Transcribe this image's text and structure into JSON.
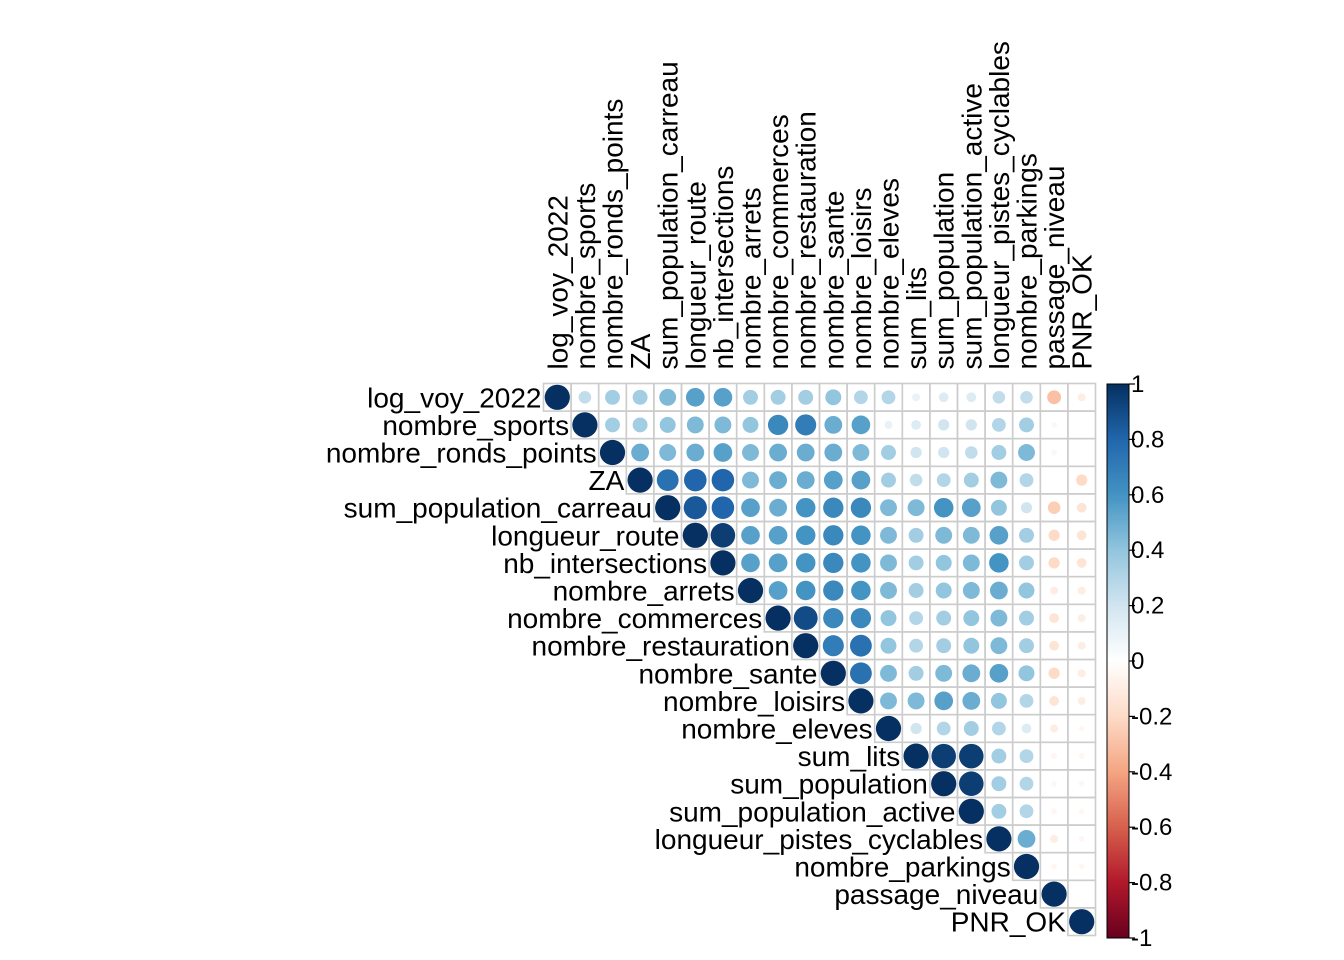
{
  "chart_data": {
    "type": "correlation-matrix-upper-circle",
    "variables": [
      "log_voy_2022",
      "nombre_sports",
      "nombre_ronds_points",
      "ZA",
      "sum_population_carreau",
      "longueur_route",
      "nb_intersections",
      "nombre_arrets",
      "nombre_commerces",
      "nombre_restauration",
      "nombre_sante",
      "nombre_loisirs",
      "nombre_eleves",
      "sum_lits",
      "sum_population",
      "sum_population_active",
      "longueur_pistes_cyclables",
      "nombre_parkings",
      "passage_niveau",
      "PNR_OK"
    ],
    "rows": [
      [
        1.0,
        0.25,
        0.35,
        0.35,
        0.45,
        0.55,
        0.55,
        0.35,
        0.35,
        0.35,
        0.4,
        0.3,
        0.3,
        0.1,
        0.15,
        0.15,
        0.25,
        0.25,
        -0.3,
        -0.1
      ],
      [
        1.0,
        0.35,
        0.35,
        0.4,
        0.45,
        0.45,
        0.4,
        0.65,
        0.7,
        0.5,
        0.55,
        0.1,
        0.15,
        0.2,
        0.2,
        0.3,
        0.35,
        0.05,
        0.0
      ],
      [
        1.0,
        0.5,
        0.45,
        0.5,
        0.55,
        0.45,
        0.5,
        0.5,
        0.5,
        0.45,
        0.35,
        0.2,
        0.2,
        0.25,
        0.35,
        0.45,
        0.05,
        0.0
      ],
      [
        1.0,
        0.75,
        0.8,
        0.8,
        0.45,
        0.5,
        0.5,
        0.55,
        0.55,
        0.35,
        0.25,
        0.3,
        0.35,
        0.45,
        0.3,
        0.0,
        -0.2
      ],
      [
        1.0,
        0.85,
        0.8,
        0.55,
        0.5,
        0.6,
        0.65,
        0.65,
        0.45,
        0.45,
        0.6,
        0.55,
        0.4,
        0.2,
        -0.25,
        -0.15
      ],
      [
        1.0,
        0.95,
        0.55,
        0.55,
        0.6,
        0.65,
        0.6,
        0.45,
        0.35,
        0.45,
        0.45,
        0.55,
        0.35,
        -0.2,
        -0.15
      ],
      [
        1.0,
        0.55,
        0.55,
        0.6,
        0.65,
        0.6,
        0.45,
        0.35,
        0.4,
        0.45,
        0.6,
        0.35,
        -0.2,
        -0.15
      ],
      [
        1.0,
        0.55,
        0.6,
        0.65,
        0.6,
        0.45,
        0.35,
        0.4,
        0.45,
        0.5,
        0.4,
        -0.1,
        -0.1
      ],
      [
        1.0,
        0.9,
        0.65,
        0.65,
        0.4,
        0.3,
        0.35,
        0.4,
        0.45,
        0.35,
        -0.15,
        -0.1
      ],
      [
        1.0,
        0.7,
        0.75,
        0.4,
        0.3,
        0.35,
        0.4,
        0.45,
        0.35,
        -0.15,
        -0.1
      ],
      [
        1.0,
        0.75,
        0.45,
        0.35,
        0.45,
        0.5,
        0.55,
        0.4,
        -0.2,
        -0.1
      ],
      [
        1.0,
        0.45,
        0.45,
        0.55,
        0.5,
        0.4,
        0.3,
        -0.15,
        -0.1
      ],
      [
        1.0,
        0.2,
        0.3,
        0.35,
        0.3,
        0.15,
        -0.1,
        -0.05
      ],
      [
        1.0,
        0.95,
        0.95,
        0.35,
        0.3,
        -0.05,
        -0.05
      ],
      [
        1.0,
        0.95,
        0.35,
        0.3,
        -0.05,
        -0.05
      ],
      [
        1.0,
        0.35,
        0.3,
        -0.05,
        -0.05
      ],
      [
        1.0,
        0.5,
        -0.1,
        -0.05
      ],
      [
        1.0,
        -0.05,
        -0.05
      ],
      [
        1.0,
        0.0
      ],
      [
        1.0
      ]
    ],
    "colorbar": {
      "range": [
        -1,
        1
      ],
      "tick_labels": [
        "1",
        "0.8",
        "0.6",
        "0.4",
        "0.2",
        "0",
        "-0.2",
        "-0.4",
        "-0.6",
        "-0.8",
        "-1"
      ],
      "tick_values": [
        1,
        0.8,
        0.6,
        0.4,
        0.2,
        0,
        -0.2,
        -0.4,
        -0.6,
        -0.8,
        -1
      ]
    },
    "palette": [
      "#67001F",
      "#B2182B",
      "#D6604D",
      "#F4A582",
      "#FDDBC7",
      "#FFFFFF",
      "#D1E5F0",
      "#92C5DE",
      "#4393C3",
      "#2166AC",
      "#053061"
    ],
    "grid_color": "#cccccc",
    "legend_position": "right"
  }
}
